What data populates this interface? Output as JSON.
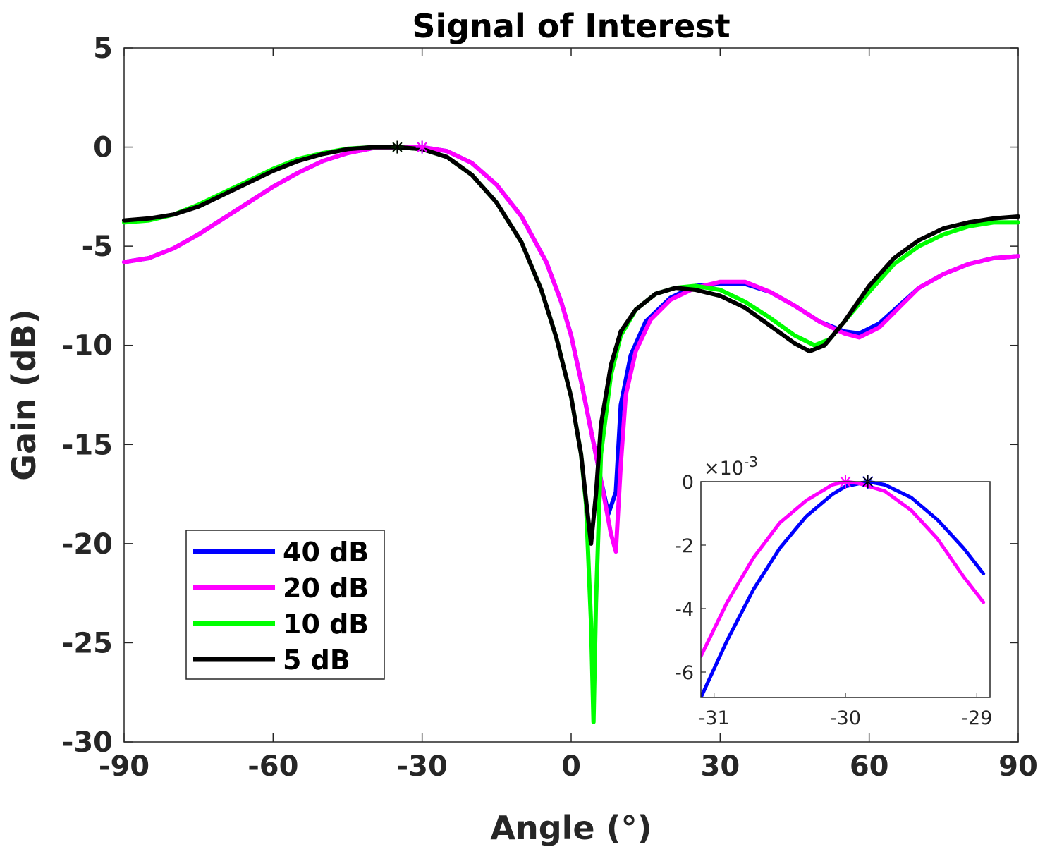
{
  "chart_data": [
    {
      "type": "line",
      "title": "Signal of Interest",
      "xlabel": "Angle (°)",
      "ylabel": "Gain (dB)",
      "xlim": [
        -90,
        90
      ],
      "ylim": [
        -30,
        5
      ],
      "xticks": [
        -90,
        -60,
        -30,
        0,
        30,
        60,
        90
      ],
      "xtick_labels": [
        "-90",
        "-60",
        "-30",
        "0",
        "30",
        "60",
        "90"
      ],
      "yticks": [
        5,
        0,
        -5,
        -10,
        -15,
        -20,
        -25,
        -30
      ],
      "ytick_labels": [
        "5",
        "0",
        "-5",
        "-10",
        "-15",
        "-20",
        "-25",
        "-30"
      ],
      "legend_position": "bottom-left",
      "grid": false,
      "series": [
        {
          "name": "40 dB",
          "color": "#0000ff",
          "marker": {
            "x": -30,
            "y": 0
          },
          "points": [
            [
              -90,
              -5.8
            ],
            [
              -85,
              -5.6
            ],
            [
              -80,
              -5.1
            ],
            [
              -75,
              -4.4
            ],
            [
              -70,
              -3.6
            ],
            [
              -65,
              -2.8
            ],
            [
              -60,
              -2.0
            ],
            [
              -55,
              -1.3
            ],
            [
              -50,
              -0.7
            ],
            [
              -45,
              -0.3
            ],
            [
              -40,
              -0.05
            ],
            [
              -35,
              0
            ],
            [
              -30,
              0
            ],
            [
              -25,
              -0.2
            ],
            [
              -20,
              -0.8
            ],
            [
              -15,
              -1.9
            ],
            [
              -10,
              -3.5
            ],
            [
              -5,
              -5.8
            ],
            [
              -2,
              -7.8
            ],
            [
              0,
              -9.5
            ],
            [
              2,
              -11.8
            ],
            [
              4,
              -14.3
            ],
            [
              6,
              -16.8
            ],
            [
              7.5,
              -18.5
            ],
            [
              9,
              -17.4
            ],
            [
              10,
              -13.0
            ],
            [
              12,
              -10.5
            ],
            [
              15,
              -8.8
            ],
            [
              20,
              -7.6
            ],
            [
              25,
              -7.0
            ],
            [
              30,
              -6.9
            ],
            [
              35,
              -6.9
            ],
            [
              40,
              -7.3
            ],
            [
              45,
              -8.0
            ],
            [
              50,
              -8.8
            ],
            [
              55,
              -9.3
            ],
            [
              58,
              -9.4
            ],
            [
              62,
              -8.9
            ],
            [
              66,
              -8.0
            ],
            [
              70,
              -7.1
            ],
            [
              75,
              -6.4
            ],
            [
              80,
              -5.9
            ],
            [
              85,
              -5.6
            ],
            [
              90,
              -5.5
            ]
          ]
        },
        {
          "name": "20 dB",
          "color": "#ff00ff",
          "marker": {
            "x": -30,
            "y": 0
          },
          "points": [
            [
              -90,
              -5.8
            ],
            [
              -85,
              -5.6
            ],
            [
              -80,
              -5.1
            ],
            [
              -75,
              -4.4
            ],
            [
              -70,
              -3.6
            ],
            [
              -65,
              -2.8
            ],
            [
              -60,
              -2.0
            ],
            [
              -55,
              -1.3
            ],
            [
              -50,
              -0.7
            ],
            [
              -45,
              -0.3
            ],
            [
              -40,
              -0.05
            ],
            [
              -35,
              0
            ],
            [
              -30,
              0
            ],
            [
              -25,
              -0.2
            ],
            [
              -20,
              -0.8
            ],
            [
              -15,
              -1.9
            ],
            [
              -10,
              -3.5
            ],
            [
              -5,
              -5.8
            ],
            [
              -2,
              -7.8
            ],
            [
              0,
              -9.5
            ],
            [
              2,
              -11.8
            ],
            [
              4,
              -14.3
            ],
            [
              6,
              -16.8
            ],
            [
              8,
              -19.5
            ],
            [
              9,
              -20.4
            ],
            [
              10,
              -16.0
            ],
            [
              11,
              -12.5
            ],
            [
              13,
              -10.3
            ],
            [
              16,
              -8.7
            ],
            [
              20,
              -7.7
            ],
            [
              25,
              -7.1
            ],
            [
              30,
              -6.8
            ],
            [
              35,
              -6.8
            ],
            [
              40,
              -7.3
            ],
            [
              45,
              -8.0
            ],
            [
              50,
              -8.8
            ],
            [
              55,
              -9.4
            ],
            [
              58,
              -9.6
            ],
            [
              62,
              -9.1
            ],
            [
              66,
              -8.1
            ],
            [
              70,
              -7.1
            ],
            [
              75,
              -6.4
            ],
            [
              80,
              -5.9
            ],
            [
              85,
              -5.6
            ],
            [
              90,
              -5.5
            ]
          ]
        },
        {
          "name": "10 dB",
          "color": "#00ff00",
          "marker": {
            "x": -35,
            "y": 0
          },
          "points": [
            [
              -90,
              -3.8
            ],
            [
              -85,
              -3.7
            ],
            [
              -80,
              -3.4
            ],
            [
              -75,
              -2.9
            ],
            [
              -70,
              -2.3
            ],
            [
              -65,
              -1.7
            ],
            [
              -60,
              -1.1
            ],
            [
              -55,
              -0.6
            ],
            [
              -50,
              -0.3
            ],
            [
              -45,
              -0.08
            ],
            [
              -40,
              0
            ],
            [
              -35,
              0
            ],
            [
              -30,
              -0.1
            ],
            [
              -25,
              -0.5
            ],
            [
              -20,
              -1.4
            ],
            [
              -15,
              -2.8
            ],
            [
              -10,
              -4.8
            ],
            [
              -6,
              -7.2
            ],
            [
              -3,
              -9.6
            ],
            [
              0,
              -12.6
            ],
            [
              2,
              -15.5
            ],
            [
              3,
              -18.0
            ],
            [
              4,
              -24.0
            ],
            [
              4.5,
              -29.0
            ],
            [
              5,
              -23.0
            ],
            [
              6,
              -15.5
            ],
            [
              8,
              -11.5
            ],
            [
              10,
              -9.5
            ],
            [
              13,
              -8.2
            ],
            [
              17,
              -7.4
            ],
            [
              21,
              -7.1
            ],
            [
              25,
              -7.0
            ],
            [
              30,
              -7.2
            ],
            [
              35,
              -7.8
            ],
            [
              40,
              -8.6
            ],
            [
              45,
              -9.5
            ],
            [
              49,
              -10.0
            ],
            [
              52,
              -9.7
            ],
            [
              55,
              -8.8
            ],
            [
              60,
              -7.3
            ],
            [
              65,
              -5.9
            ],
            [
              70,
              -5.0
            ],
            [
              75,
              -4.4
            ],
            [
              80,
              -4.0
            ],
            [
              85,
              -3.8
            ],
            [
              90,
              -3.8
            ]
          ]
        },
        {
          "name": "5 dB",
          "color": "#000000",
          "marker": {
            "x": -35,
            "y": 0
          },
          "points": [
            [
              -90,
              -3.7
            ],
            [
              -85,
              -3.6
            ],
            [
              -80,
              -3.4
            ],
            [
              -75,
              -3.0
            ],
            [
              -70,
              -2.4
            ],
            [
              -65,
              -1.8
            ],
            [
              -60,
              -1.2
            ],
            [
              -55,
              -0.7
            ],
            [
              -50,
              -0.35
            ],
            [
              -45,
              -0.1
            ],
            [
              -40,
              0
            ],
            [
              -35,
              0
            ],
            [
              -30,
              -0.1
            ],
            [
              -25,
              -0.5
            ],
            [
              -20,
              -1.4
            ],
            [
              -15,
              -2.8
            ],
            [
              -10,
              -4.8
            ],
            [
              -6,
              -7.2
            ],
            [
              -3,
              -9.6
            ],
            [
              0,
              -12.6
            ],
            [
              2,
              -15.5
            ],
            [
              3,
              -17.8
            ],
            [
              4,
              -20.0
            ],
            [
              5,
              -17.5
            ],
            [
              6,
              -14.0
            ],
            [
              8,
              -11.0
            ],
            [
              10,
              -9.3
            ],
            [
              13,
              -8.2
            ],
            [
              17,
              -7.4
            ],
            [
              21,
              -7.1
            ],
            [
              25,
              -7.2
            ],
            [
              30,
              -7.5
            ],
            [
              35,
              -8.1
            ],
            [
              40,
              -9.0
            ],
            [
              45,
              -9.9
            ],
            [
              48,
              -10.3
            ],
            [
              51,
              -10.0
            ],
            [
              55,
              -8.8
            ],
            [
              60,
              -7.0
            ],
            [
              65,
              -5.6
            ],
            [
              70,
              -4.7
            ],
            [
              75,
              -4.1
            ],
            [
              80,
              -3.8
            ],
            [
              85,
              -3.6
            ],
            [
              90,
              -3.5
            ]
          ]
        }
      ]
    },
    {
      "type": "line",
      "title": "",
      "xlim": [
        -31.1,
        -28.9
      ],
      "ylim": [
        -6.8,
        0
      ],
      "y_multiplier_label": "×10",
      "y_multiplier_exponent": "-3",
      "xticks": [
        -31,
        -30,
        -29
      ],
      "xtick_labels": [
        "-31",
        "-30",
        "-29"
      ],
      "yticks": [
        0,
        -2,
        -4,
        -6
      ],
      "ytick_labels": [
        "0",
        "-2",
        "-4",
        "-6"
      ],
      "units_note": "y values in units of 10^-3 dB",
      "series": [
        {
          "name": "40 dB",
          "color": "#0000ff",
          "marker": {
            "x": -29.83,
            "y": 0
          },
          "points": [
            [
              -31.1,
              -6.8
            ],
            [
              -30.9,
              -5.0
            ],
            [
              -30.7,
              -3.4
            ],
            [
              -30.5,
              -2.1
            ],
            [
              -30.3,
              -1.1
            ],
            [
              -30.1,
              -0.4
            ],
            [
              -30.0,
              -0.15
            ],
            [
              -29.83,
              0
            ],
            [
              -29.7,
              -0.1
            ],
            [
              -29.5,
              -0.5
            ],
            [
              -29.3,
              -1.2
            ],
            [
              -29.1,
              -2.1
            ],
            [
              -28.95,
              -2.9
            ]
          ]
        },
        {
          "name": "20 dB",
          "color": "#ff00ff",
          "marker": {
            "x": -30.0,
            "y": 0
          },
          "points": [
            [
              -31.1,
              -5.5
            ],
            [
              -30.9,
              -3.8
            ],
            [
              -30.7,
              -2.4
            ],
            [
              -30.5,
              -1.3
            ],
            [
              -30.3,
              -0.6
            ],
            [
              -30.1,
              -0.1
            ],
            [
              -30.0,
              0
            ],
            [
              -29.9,
              -0.05
            ],
            [
              -29.7,
              -0.3
            ],
            [
              -29.5,
              -0.9
            ],
            [
              -29.3,
              -1.8
            ],
            [
              -29.1,
              -3.0
            ],
            [
              -28.95,
              -3.8
            ]
          ]
        }
      ]
    }
  ],
  "legend": {
    "entries": [
      {
        "label": "40 dB",
        "color": "#0000ff"
      },
      {
        "label": "20 dB",
        "color": "#ff00ff"
      },
      {
        "label": "10 dB",
        "color": "#00ff00"
      },
      {
        "label": "5 dB",
        "color": "#000000"
      }
    ]
  },
  "colors": {
    "axis": "#262626",
    "background": "#ffffff"
  }
}
